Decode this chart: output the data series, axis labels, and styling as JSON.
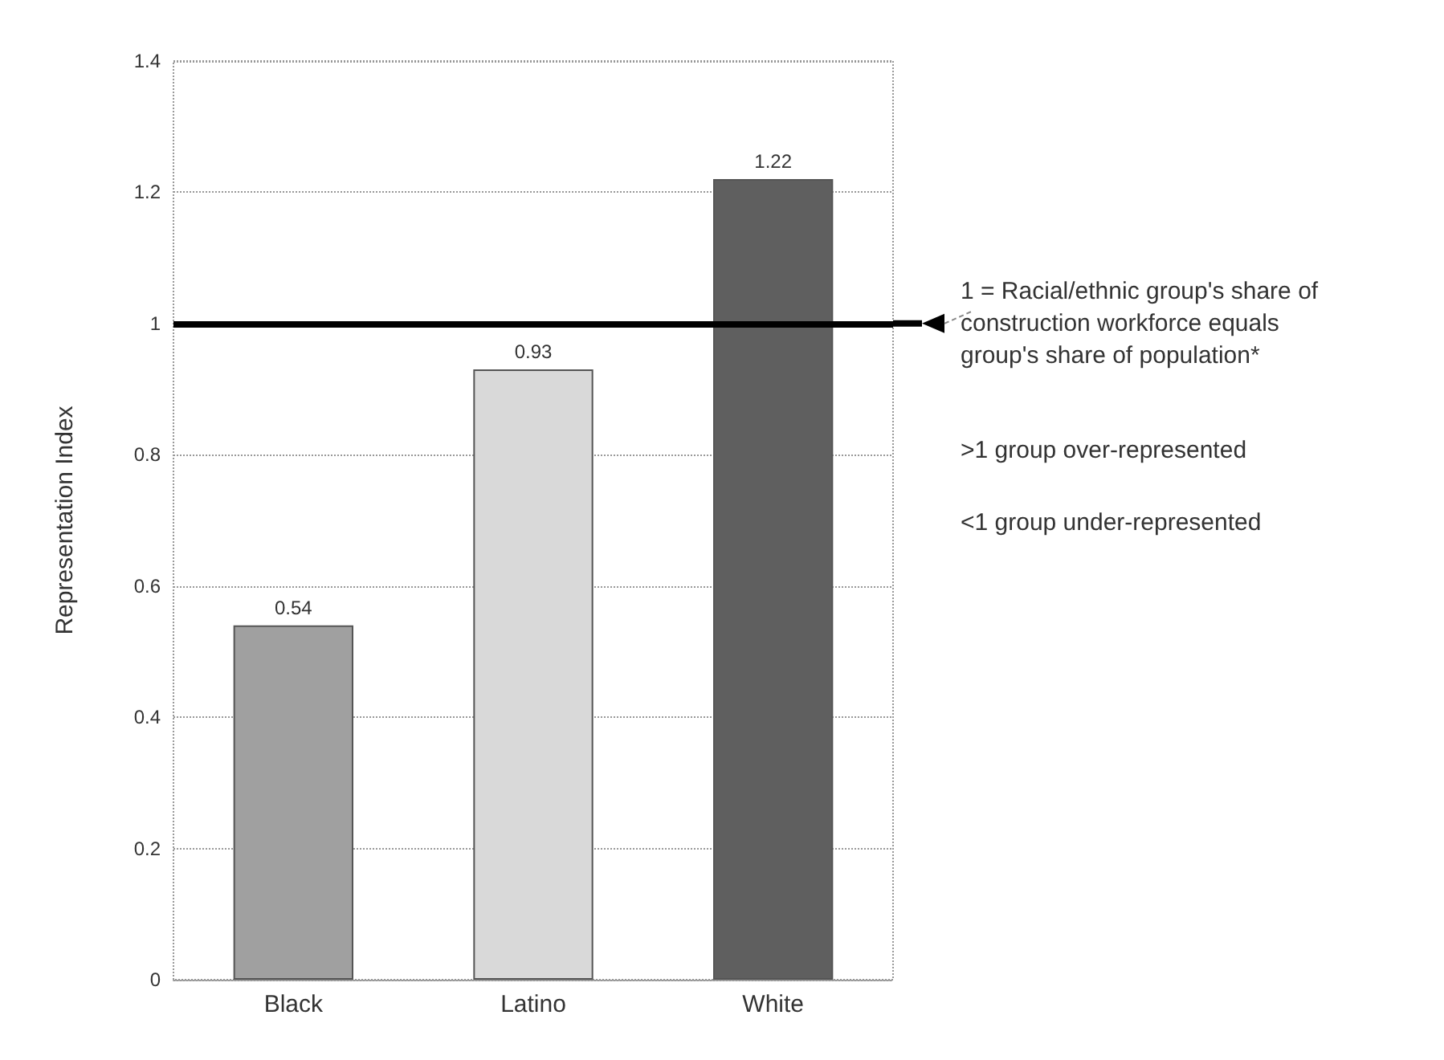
{
  "chart_data": {
    "type": "bar",
    "ylabel": "Representation Index",
    "categories": [
      "Black",
      "Latino",
      "White"
    ],
    "values": [
      0.54,
      0.93,
      1.22
    ],
    "colors": [
      "#a0a0a0",
      "#d9d9d9",
      "#5f5f5f"
    ],
    "data_labels": true,
    "ylim": [
      0,
      1.4
    ],
    "yticks": [
      0,
      0.2,
      0.4,
      0.6,
      0.8,
      1,
      1.2,
      1.4
    ],
    "grid": "y",
    "ref_lines": [
      {
        "axis": "y",
        "value": 1,
        "label": "1 = Racial/ethnic group's share of construction workforce equals group's share of population*",
        "color": "#000000"
      }
    ],
    "annotations": [
      ">1 group over-represented",
      "<1 group under-represented"
    ]
  }
}
